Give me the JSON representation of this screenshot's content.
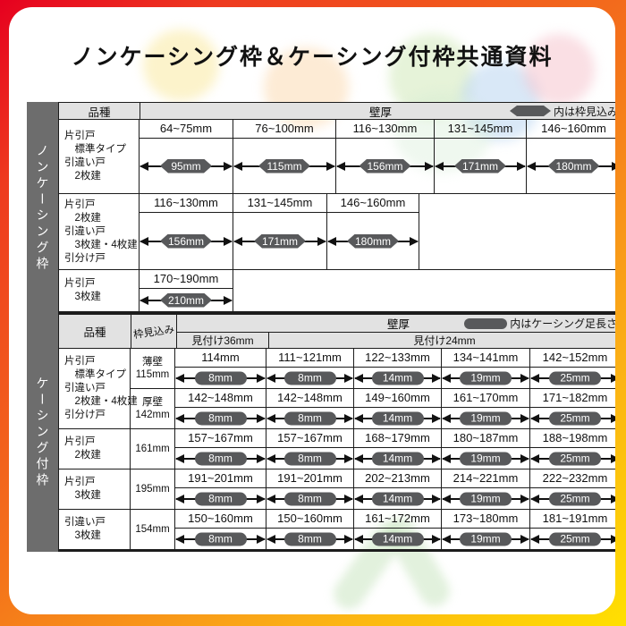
{
  "title": "ノンケーシング枠＆ケーシング付枠共通資料",
  "colors": {
    "pill": "#58595b",
    "side_label_bg": "#6d6d6d",
    "header_bg": "#e2e2e2",
    "frame_red": "#e6001f",
    "frame_orange": "#f4731b",
    "frame_yellow": "#ffe000"
  },
  "table1": {
    "side_label": "ノンケーシング枠",
    "col_kind": "品種",
    "col_wall": "壁厚",
    "legend_text": "内は枠見込み",
    "rows": [
      {
        "kind_lines": [
          "片引戸",
          "　標準タイプ",
          "引違い戸",
          "　2枚建"
        ],
        "cells": [
          {
            "range": "64~75mm",
            "pill": "95mm"
          },
          {
            "range": "76~100mm",
            "pill": "115mm"
          },
          {
            "range": "116~130mm",
            "pill": "156mm"
          },
          {
            "range": "131~145mm",
            "pill": "171mm"
          },
          {
            "range": "146~160mm",
            "pill": "180mm"
          }
        ]
      },
      {
        "kind_lines": [
          "片引戸",
          "　2枚建",
          "引違い戸",
          "　3枚建・4枚建",
          "引分け戸"
        ],
        "cells": [
          {
            "range": "116~130mm",
            "pill": "156mm"
          },
          {
            "range": "131~145mm",
            "pill": "171mm"
          },
          {
            "range": "146~160mm",
            "pill": "180mm"
          }
        ]
      },
      {
        "kind_lines": [
          "片引戸",
          "　3枚建"
        ],
        "cells": [
          {
            "range": "170~190mm",
            "pill": "210mm"
          }
        ]
      }
    ]
  },
  "table2": {
    "side_label": "ケーシング付枠",
    "col_kind": "品種",
    "col_mikomi": "枠見込み",
    "col_wall": "壁厚",
    "legend_text": "内はケーシング足長さ",
    "sub_col_36": "見付け36mm",
    "sub_col_24": "見付け24mm",
    "rows": [
      {
        "kind_lines": [
          "片引戸",
          "　標準タイプ",
          "引違い戸",
          "　2枚建・4枚建",
          "引分け戸"
        ],
        "subrows": [
          {
            "mikomi_lines": [
              "薄壁",
              "115mm"
            ],
            "cells": [
              {
                "range": "114mm",
                "pill": "8mm"
              },
              {
                "range": "111~121mm",
                "pill": "8mm"
              },
              {
                "range": "122~133mm",
                "pill": "14mm"
              },
              {
                "range": "134~141mm",
                "pill": "19mm"
              },
              {
                "range": "142~152mm",
                "pill": "25mm"
              }
            ]
          },
          {
            "mikomi_lines": [
              "厚壁",
              "142mm"
            ],
            "cells": [
              {
                "range": "142~148mm",
                "pill": "8mm"
              },
              {
                "range": "142~148mm",
                "pill": "8mm"
              },
              {
                "range": "149~160mm",
                "pill": "14mm"
              },
              {
                "range": "161~170mm",
                "pill": "19mm"
              },
              {
                "range": "171~182mm",
                "pill": "25mm"
              }
            ]
          }
        ]
      },
      {
        "kind_lines": [
          "片引戸",
          "　2枚建"
        ],
        "subrows": [
          {
            "mikomi_lines": [
              "161mm"
            ],
            "cells": [
              {
                "range": "157~167mm",
                "pill": "8mm"
              },
              {
                "range": "157~167mm",
                "pill": "8mm"
              },
              {
                "range": "168~179mm",
                "pill": "14mm"
              },
              {
                "range": "180~187mm",
                "pill": "19mm"
              },
              {
                "range": "188~198mm",
                "pill": "25mm"
              }
            ]
          }
        ]
      },
      {
        "kind_lines": [
          "片引戸",
          "　3枚建"
        ],
        "subrows": [
          {
            "mikomi_lines": [
              "195mm"
            ],
            "cells": [
              {
                "range": "191~201mm",
                "pill": "8mm"
              },
              {
                "range": "191~201mm",
                "pill": "8mm"
              },
              {
                "range": "202~213mm",
                "pill": "14mm"
              },
              {
                "range": "214~221mm",
                "pill": "19mm"
              },
              {
                "range": "222~232mm",
                "pill": "25mm"
              }
            ]
          }
        ]
      },
      {
        "kind_lines": [
          "引違い戸",
          "　3枚建"
        ],
        "subrows": [
          {
            "mikomi_lines": [
              "154mm"
            ],
            "cells": [
              {
                "range": "150~160mm",
                "pill": "8mm"
              },
              {
                "range": "150~160mm",
                "pill": "8mm"
              },
              {
                "range": "161~172mm",
                "pill": "14mm"
              },
              {
                "range": "173~180mm",
                "pill": "19mm"
              },
              {
                "range": "181~191mm",
                "pill": "25mm"
              }
            ]
          }
        ]
      }
    ]
  }
}
